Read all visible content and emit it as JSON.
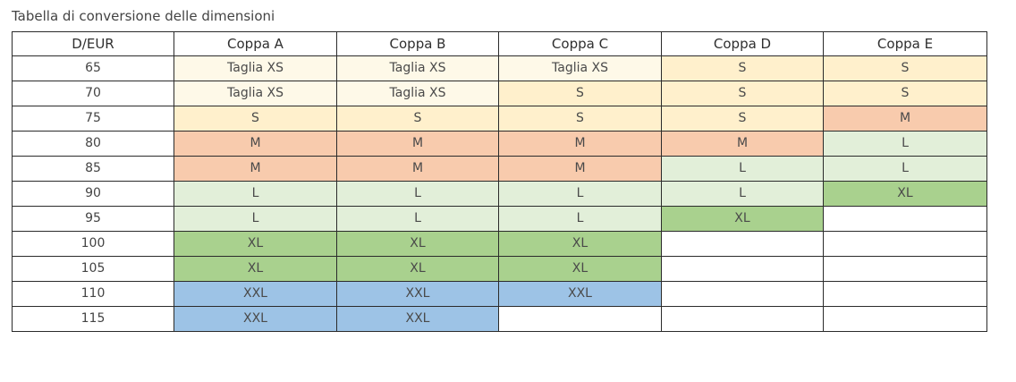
{
  "title": "Tabella di conversione delle dimensioni",
  "colors": {
    "XS": "#fef9e8",
    "S": "#fff0cc",
    "M": "#f8cbad",
    "L": "#e2efd9",
    "XL": "#a9d18e",
    "XXL": "#9dc3e6",
    "empty": "#ffffff"
  },
  "headers": [
    "D/EUR",
    "Coppa A",
    "Coppa B",
    "Coppa C",
    "Coppa D",
    "Coppa E"
  ],
  "rows": [
    {
      "band": "65",
      "cells": [
        {
          "text": "Taglia XS",
          "size": "XS"
        },
        {
          "text": "Taglia XS",
          "size": "XS"
        },
        {
          "text": "Taglia XS",
          "size": "XS"
        },
        {
          "text": "S",
          "size": "S"
        },
        {
          "text": "S",
          "size": "S"
        }
      ]
    },
    {
      "band": "70",
      "cells": [
        {
          "text": "Taglia XS",
          "size": "XS"
        },
        {
          "text": "Taglia XS",
          "size": "XS"
        },
        {
          "text": "S",
          "size": "S"
        },
        {
          "text": "S",
          "size": "S"
        },
        {
          "text": "S",
          "size": "S"
        }
      ]
    },
    {
      "band": "75",
      "cells": [
        {
          "text": "S",
          "size": "S"
        },
        {
          "text": "S",
          "size": "S"
        },
        {
          "text": "S",
          "size": "S"
        },
        {
          "text": "S",
          "size": "S"
        },
        {
          "text": "M",
          "size": "M"
        }
      ]
    },
    {
      "band": "80",
      "cells": [
        {
          "text": "M",
          "size": "M"
        },
        {
          "text": "M",
          "size": "M"
        },
        {
          "text": "M",
          "size": "M"
        },
        {
          "text": "M",
          "size": "M"
        },
        {
          "text": "L",
          "size": "L"
        }
      ]
    },
    {
      "band": "85",
      "cells": [
        {
          "text": "M",
          "size": "M"
        },
        {
          "text": "M",
          "size": "M"
        },
        {
          "text": "M",
          "size": "M"
        },
        {
          "text": "L",
          "size": "L"
        },
        {
          "text": "L",
          "size": "L"
        }
      ]
    },
    {
      "band": "90",
      "cells": [
        {
          "text": "L",
          "size": "L"
        },
        {
          "text": "L",
          "size": "L"
        },
        {
          "text": "L",
          "size": "L"
        },
        {
          "text": "L",
          "size": "L"
        },
        {
          "text": "XL",
          "size": "XL"
        }
      ]
    },
    {
      "band": "95",
      "cells": [
        {
          "text": "L",
          "size": "L"
        },
        {
          "text": "L",
          "size": "L"
        },
        {
          "text": "L",
          "size": "L"
        },
        {
          "text": "XL",
          "size": "XL"
        },
        {
          "text": "",
          "size": "empty"
        }
      ]
    },
    {
      "band": "100",
      "cells": [
        {
          "text": "XL",
          "size": "XL"
        },
        {
          "text": "XL",
          "size": "XL"
        },
        {
          "text": "XL",
          "size": "XL"
        },
        {
          "text": "",
          "size": "empty"
        },
        {
          "text": "",
          "size": "empty"
        }
      ]
    },
    {
      "band": "105",
      "cells": [
        {
          "text": "XL",
          "size": "XL"
        },
        {
          "text": "XL",
          "size": "XL"
        },
        {
          "text": "XL",
          "size": "XL"
        },
        {
          "text": "",
          "size": "empty"
        },
        {
          "text": "",
          "size": "empty"
        }
      ]
    },
    {
      "band": "110",
      "cells": [
        {
          "text": "XXL",
          "size": "XXL"
        },
        {
          "text": "XXL",
          "size": "XXL"
        },
        {
          "text": "XXL",
          "size": "XXL"
        },
        {
          "text": "",
          "size": "empty"
        },
        {
          "text": "",
          "size": "empty"
        }
      ]
    },
    {
      "band": "115",
      "cells": [
        {
          "text": "XXL",
          "size": "XXL"
        },
        {
          "text": "XXL",
          "size": "XXL"
        },
        {
          "text": "",
          "size": "empty"
        },
        {
          "text": "",
          "size": "empty"
        },
        {
          "text": "",
          "size": "empty"
        }
      ]
    }
  ]
}
